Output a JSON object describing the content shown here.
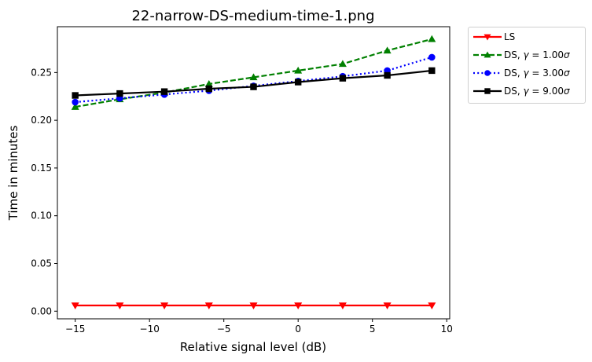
{
  "chart_data": {
    "type": "line",
    "title": "22-narrow-DS-medium-time-1.png",
    "xlabel": "Relative signal level (dB)",
    "ylabel": "Time in minutes",
    "xlim": [
      -16.2,
      10.2
    ],
    "ylim": [
      -0.008,
      0.298
    ],
    "xticks": [
      -15,
      -10,
      -5,
      0,
      5,
      10
    ],
    "xtick_labels": [
      "−15",
      "−10",
      "−5",
      "0",
      "5",
      "10"
    ],
    "yticks": [
      0.0,
      0.05,
      0.1,
      0.15,
      0.2,
      0.25
    ],
    "ytick_labels": [
      "0.00",
      "0.05",
      "0.10",
      "0.15",
      "0.20",
      "0.25"
    ],
    "x": [
      -15,
      -12,
      -9,
      -6,
      -3,
      0,
      3,
      6,
      9
    ],
    "grid": false,
    "legend_position": "outside-top-right",
    "series": [
      {
        "name": "LS",
        "name_main": "LS",
        "name_gamma": "",
        "name_value": "",
        "color": "#ff0000",
        "dash": "solid",
        "marker": "triangle-down",
        "values": [
          0.006,
          0.006,
          0.006,
          0.006,
          0.006,
          0.006,
          0.006,
          0.006,
          0.006
        ]
      },
      {
        "name": "DS, γ = 1.00σ",
        "name_main": "DS, ",
        "name_gamma": "γ",
        "name_value": " = 1.00",
        "name_sigma": "σ",
        "color": "#008000",
        "dash": "dashed",
        "marker": "triangle-up",
        "values": [
          0.214,
          0.222,
          0.229,
          0.238,
          0.245,
          0.252,
          0.259,
          0.273,
          0.285
        ]
      },
      {
        "name": "DS, γ = 3.00σ",
        "name_main": "DS, ",
        "name_gamma": "γ",
        "name_value": " = 3.00",
        "name_sigma": "σ",
        "color": "#0000ff",
        "dash": "dotted",
        "marker": "circle",
        "values": [
          0.219,
          0.223,
          0.227,
          0.231,
          0.236,
          0.241,
          0.246,
          0.252,
          0.266
        ]
      },
      {
        "name": "DS, γ = 9.00σ",
        "name_main": "DS, ",
        "name_gamma": "γ",
        "name_value": " = 9.00",
        "name_sigma": "σ",
        "color": "#000000",
        "dash": "solid",
        "marker": "square",
        "values": [
          0.226,
          0.228,
          0.23,
          0.233,
          0.235,
          0.24,
          0.244,
          0.247,
          0.252
        ]
      }
    ]
  }
}
